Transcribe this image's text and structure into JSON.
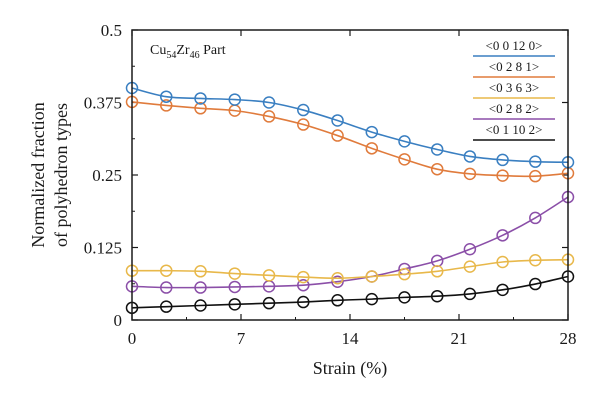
{
  "chart_data": {
    "type": "line",
    "annotation": {
      "base": "Cu",
      "sub1": "54",
      "mid": "Zr",
      "sub2": "46",
      "suffix": " Part"
    },
    "xlabel": "Strain (%)",
    "ylabel_line1": "Normalized fraction",
    "ylabel_line2": "of polyhedron types",
    "xlim": [
      0,
      28
    ],
    "ylim": [
      0,
      0.5
    ],
    "xticks": [
      0,
      7,
      14,
      21,
      28
    ],
    "xtick_labels": [
      "0",
      "7",
      "14",
      "21",
      "28"
    ],
    "yticks": [
      0,
      0.125,
      0.25,
      0.375,
      0.5
    ],
    "ytick_labels": [
      "0",
      "0.125",
      "0.25",
      "0.375",
      "0.5"
    ],
    "x": [
      0,
      2.2,
      4.4,
      6.6,
      8.8,
      11,
      13.2,
      15.4,
      17.5,
      19.6,
      21.7,
      23.8,
      25.9,
      28
    ],
    "legend_position": "top-right",
    "series": [
      {
        "name": "<0 0 12 0>",
        "color": "#3a7fc1",
        "values": [
          0.4,
          0.385,
          0.382,
          0.38,
          0.375,
          0.362,
          0.344,
          0.324,
          0.308,
          0.294,
          0.282,
          0.276,
          0.273,
          0.272
        ]
      },
      {
        "name": "<0 2 8 1>",
        "color": "#e07b3c",
        "values": [
          0.376,
          0.37,
          0.365,
          0.361,
          0.351,
          0.337,
          0.318,
          0.296,
          0.277,
          0.26,
          0.252,
          0.249,
          0.248,
          0.253
        ]
      },
      {
        "name": "<0 3 6 3>",
        "color": "#e8b84a",
        "values": [
          0.085,
          0.085,
          0.084,
          0.08,
          0.077,
          0.074,
          0.072,
          0.075,
          0.079,
          0.084,
          0.092,
          0.1,
          0.103,
          0.104
        ]
      },
      {
        "name": "<0 2 8 2>",
        "color": "#8b4fa8",
        "values": [
          0.058,
          0.056,
          0.056,
          0.057,
          0.058,
          0.06,
          0.066,
          0.075,
          0.088,
          0.102,
          0.122,
          0.146,
          0.176,
          0.212
        ]
      },
      {
        "name": "<0 1 10 2>",
        "color": "#111111",
        "values": [
          0.021,
          0.023,
          0.025,
          0.027,
          0.029,
          0.031,
          0.034,
          0.036,
          0.039,
          0.041,
          0.045,
          0.052,
          0.062,
          0.075
        ]
      }
    ]
  }
}
